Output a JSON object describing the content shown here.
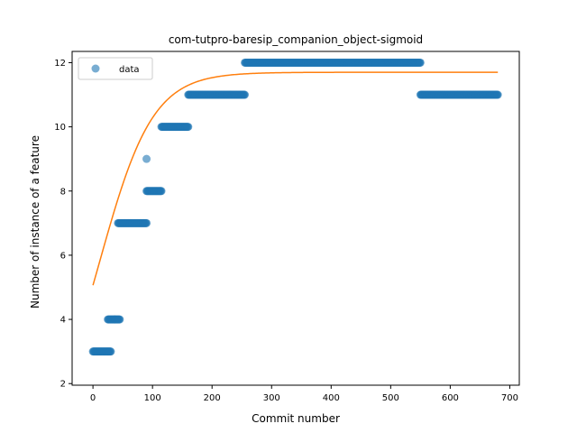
{
  "chart_data": {
    "type": "scatter",
    "title": "com-tutpro-baresip_companion_object-sigmoid",
    "xlabel": "Commit number",
    "ylabel": "Number of instance of a feature",
    "xlim": [
      -35,
      716
    ],
    "ylim": [
      1.95,
      12.35
    ],
    "xticks": [
      0,
      100,
      200,
      300,
      400,
      500,
      600,
      700
    ],
    "yticks": [
      2,
      4,
      6,
      8,
      10,
      12
    ],
    "grid": false,
    "legend": {
      "placement": "top-left",
      "entries": [
        "data"
      ]
    },
    "series": [
      {
        "name": "data",
        "kind": "scatter",
        "color": "#1f77b4",
        "segments": [
          {
            "x_start": 0,
            "x_end": 30,
            "y": 3
          },
          {
            "x_start": 25,
            "x_end": 45,
            "y": 4
          },
          {
            "x_start": 42,
            "x_end": 90,
            "y": 7
          },
          {
            "x_start": 90,
            "x_end": 115,
            "y": 8
          },
          {
            "x_start": 115,
            "x_end": 160,
            "y": 10
          },
          {
            "x_start": 160,
            "x_end": 255,
            "y": 11
          },
          {
            "x_start": 255,
            "x_end": 550,
            "y": 12
          },
          {
            "x_start": 550,
            "x_end": 680,
            "y": 11
          }
        ],
        "points": [
          {
            "x": 90,
            "y": 9
          }
        ]
      },
      {
        "kind": "line",
        "color": "#ff7f0e",
        "model": "sigmoid",
        "L": 11.7,
        "x0": 12,
        "k": 0.0225,
        "x_range": [
          0,
          680
        ]
      }
    ]
  }
}
